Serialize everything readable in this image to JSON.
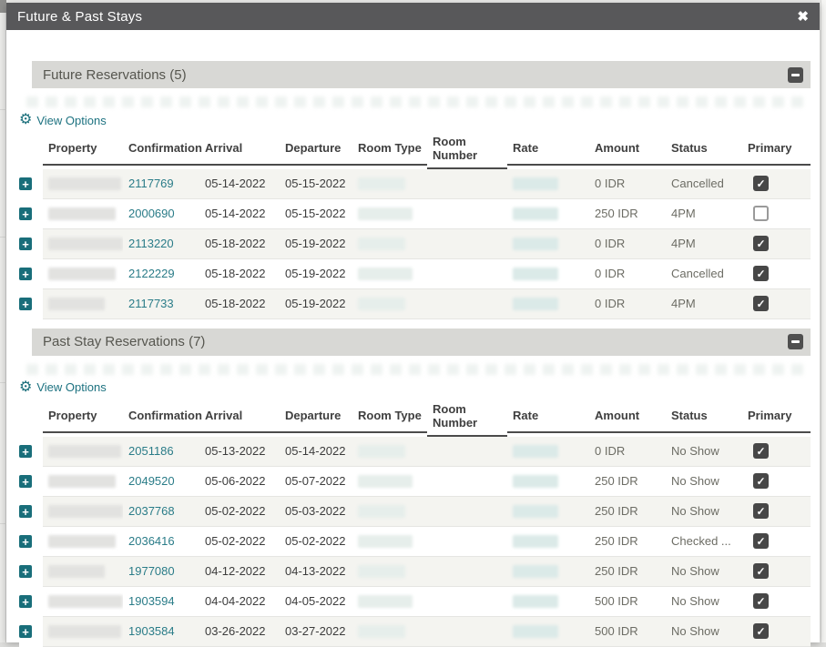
{
  "modal": {
    "title": "Future & Past Stays",
    "close_icon": "✖"
  },
  "icons": {
    "gear": "⚙",
    "expand_plus": "+",
    "check": "✓"
  },
  "colors": {
    "titlebar": "#58585a",
    "section_bar": "#d8d8d5",
    "accent_teal": "#196e7a",
    "link_teal": "#2a7c88",
    "row_alt": "#f4f4f0",
    "checkbox": "#474747"
  },
  "sections": [
    {
      "title": "Future Reservations (5)",
      "view_options_label": "View Options",
      "columns": [
        "Property",
        "Confirmation",
        "Arrival",
        "Departure",
        "Room Type",
        "Room Number",
        "Rate",
        "Amount",
        "Status",
        "Primary"
      ],
      "rows": [
        {
          "confirmation": "2117769",
          "arrival": "05-14-2022",
          "departure": "05-15-2022",
          "amount": "0 IDR",
          "status": "Cancelled",
          "primary": true
        },
        {
          "confirmation": "2000690",
          "arrival": "05-14-2022",
          "departure": "05-15-2022",
          "amount": "250 IDR",
          "status": "4PM",
          "primary": false,
          "note": ".."
        },
        {
          "confirmation": "2113220",
          "arrival": "05-18-2022",
          "departure": "05-19-2022",
          "amount": "0 IDR",
          "status": "4PM",
          "primary": true
        },
        {
          "confirmation": "2122229",
          "arrival": "05-18-2022",
          "departure": "05-19-2022",
          "amount": "0 IDR",
          "status": "Cancelled",
          "primary": true
        },
        {
          "confirmation": "2117733",
          "arrival": "05-18-2022",
          "departure": "05-19-2022",
          "amount": "0 IDR",
          "status": "4PM",
          "primary": true
        }
      ]
    },
    {
      "title": "Past Stay Reservations (7)",
      "view_options_label": "View Options",
      "columns": [
        "Property",
        "Confirmation",
        "Arrival",
        "Departure",
        "Room Type",
        "Room Number",
        "Rate",
        "Amount",
        "Status",
        "Primary"
      ],
      "rows": [
        {
          "confirmation": "2051186",
          "arrival": "05-13-2022",
          "departure": "05-14-2022",
          "amount": "0 IDR",
          "status": "No Show",
          "primary": true
        },
        {
          "confirmation": "2049520",
          "arrival": "05-06-2022",
          "departure": "05-07-2022",
          "amount": "250 IDR",
          "status": "No Show",
          "primary": true
        },
        {
          "confirmation": "2037768",
          "arrival": "05-02-2022",
          "departure": "05-03-2022",
          "amount": "250 IDR",
          "status": "No Show",
          "primary": true
        },
        {
          "confirmation": "2036416",
          "arrival": "05-02-2022",
          "departure": "05-02-2022",
          "amount": "250 IDR",
          "status": "Checked ...",
          "primary": true
        },
        {
          "confirmation": "1977080",
          "arrival": "04-12-2022",
          "departure": "04-13-2022",
          "amount": "250 IDR",
          "status": "No Show",
          "primary": true
        },
        {
          "confirmation": "1903594",
          "arrival": "04-04-2022",
          "departure": "04-05-2022",
          "amount": "500 IDR",
          "status": "No Show",
          "primary": true
        },
        {
          "confirmation": "1903584",
          "arrival": "03-26-2022",
          "departure": "03-27-2022",
          "amount": "500 IDR",
          "status": "No Show",
          "primary": true
        }
      ]
    }
  ]
}
